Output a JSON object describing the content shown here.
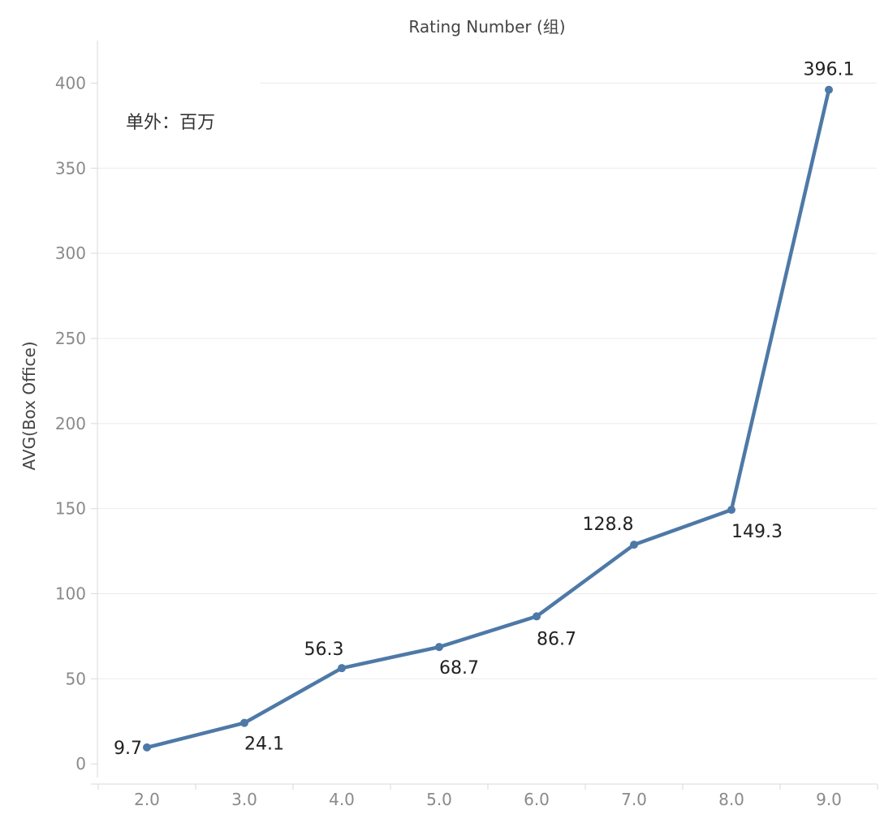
{
  "chart_data": {
    "type": "line",
    "title": "",
    "xlabel": "Rating Number (组)",
    "ylabel": "AVG(Box Office)",
    "categories": [
      "2.0",
      "3.0",
      "4.0",
      "5.0",
      "6.0",
      "7.0",
      "8.0",
      "9.0"
    ],
    "values": [
      9.7,
      24.1,
      56.3,
      68.7,
      86.7,
      128.8,
      149.3,
      396.1
    ],
    "data_labels": [
      "9.7",
      "24.1",
      "56.3",
      "68.7",
      "86.7",
      "128.8",
      "149.3",
      "396.1"
    ],
    "y_ticks": [
      0,
      50,
      100,
      150,
      200,
      250,
      300,
      350,
      400
    ],
    "ylim": [
      -8,
      425
    ],
    "grid": true,
    "x_axis_title_position": "top",
    "annotation": "单外：百万",
    "colors": {
      "line": "#4e79a7",
      "gridline": "#ebebeb",
      "axis": "#d9d9d9"
    }
  }
}
